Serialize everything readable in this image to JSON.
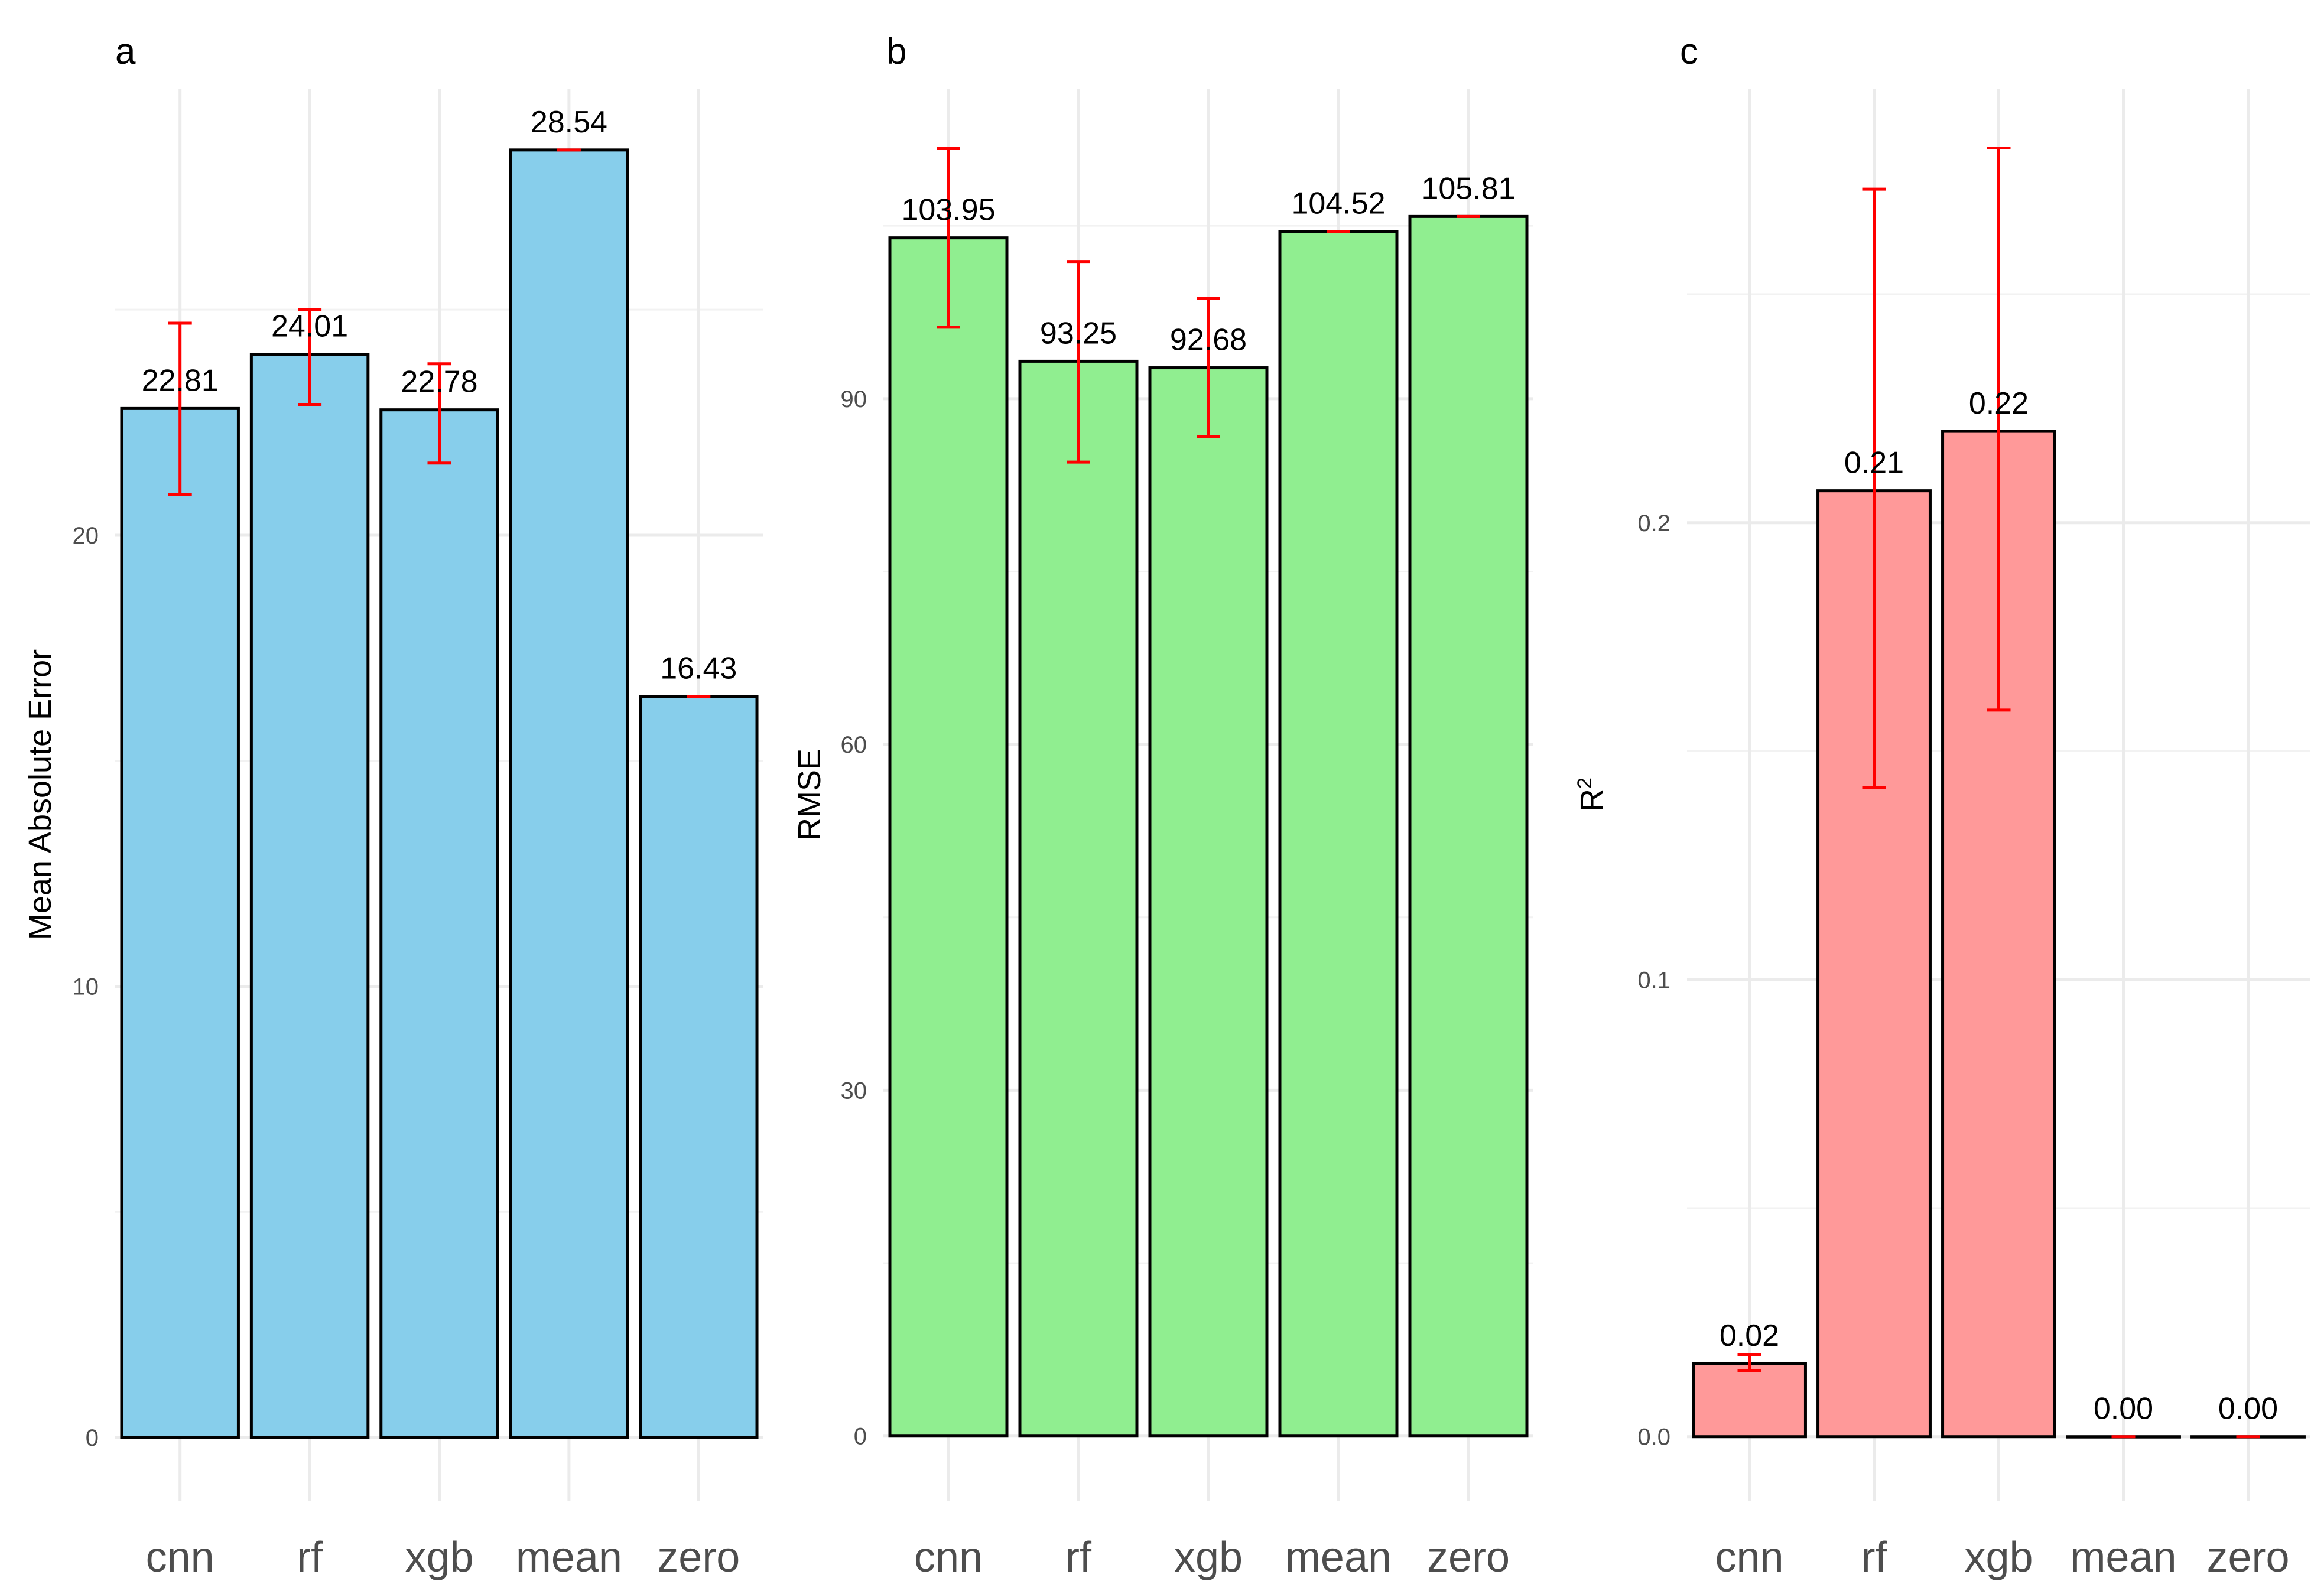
{
  "chart_data": [
    {
      "type": "bar",
      "panel_label": "a",
      "ylabel": "Mean Absolute Error",
      "categories": [
        "cnn",
        "rf",
        "xgb",
        "mean",
        "zero"
      ],
      "values": [
        22.81,
        24.01,
        22.78,
        28.54,
        16.43
      ],
      "value_labels": [
        "22.81",
        "24.01",
        "22.78",
        "28.54",
        "16.43"
      ],
      "error_low": [
        20.9,
        22.9,
        21.6,
        28.54,
        16.43
      ],
      "error_high": [
        24.7,
        25.0,
        23.8,
        28.54,
        16.43
      ],
      "ylim": [
        -1.4,
        29.9
      ],
      "yticks": [
        0,
        10,
        20
      ],
      "ytick_labels": [
        "0",
        "10",
        "20"
      ],
      "yminor": [
        5,
        15,
        25
      ],
      "bar_color": "#87CEEB",
      "error_color": "#FF0000"
    },
    {
      "type": "bar",
      "panel_label": "b",
      "ylabel": "RMSE",
      "categories": [
        "cnn",
        "rf",
        "xgb",
        "mean",
        "zero"
      ],
      "values": [
        103.95,
        93.25,
        92.68,
        104.52,
        105.81
      ],
      "value_labels": [
        "103.95",
        "93.25",
        "92.68",
        "104.52",
        "105.81"
      ],
      "error_low": [
        96.2,
        84.5,
        86.7,
        104.52,
        105.81
      ],
      "error_high": [
        111.7,
        101.9,
        98.7,
        104.52,
        105.81
      ],
      "ylim": [
        -5.6,
        116.9
      ],
      "yticks": [
        0,
        30,
        60,
        90
      ],
      "ytick_labels": [
        "0",
        "30",
        "60",
        "90"
      ],
      "yminor": [
        15,
        45,
        75,
        105
      ],
      "bar_color": "#90EE90",
      "error_color": "#FF0000"
    },
    {
      "type": "bar",
      "panel_label": "c",
      "ylabel": "R",
      "ylabel_superscript": "2",
      "categories": [
        "cnn",
        "rf",
        "xgb",
        "mean",
        "zero"
      ],
      "values": [
        0.016,
        0.207,
        0.22,
        0.0,
        0.0
      ],
      "value_labels": [
        "0.02",
        "0.21",
        "0.22",
        "0.00",
        "0.00"
      ],
      "error_low": [
        0.0145,
        0.142,
        0.159,
        0.0,
        0.0
      ],
      "error_high": [
        0.018,
        0.273,
        0.282,
        0.0,
        0.0
      ],
      "ylim": [
        -0.014,
        0.295
      ],
      "yticks": [
        0.0,
        0.1,
        0.2
      ],
      "ytick_labels": [
        "0.0",
        "0.1",
        "0.2"
      ],
      "yminor": [
        0.05,
        0.15,
        0.25
      ],
      "bar_color": "#FF9999",
      "error_color": "#FF0000"
    }
  ]
}
